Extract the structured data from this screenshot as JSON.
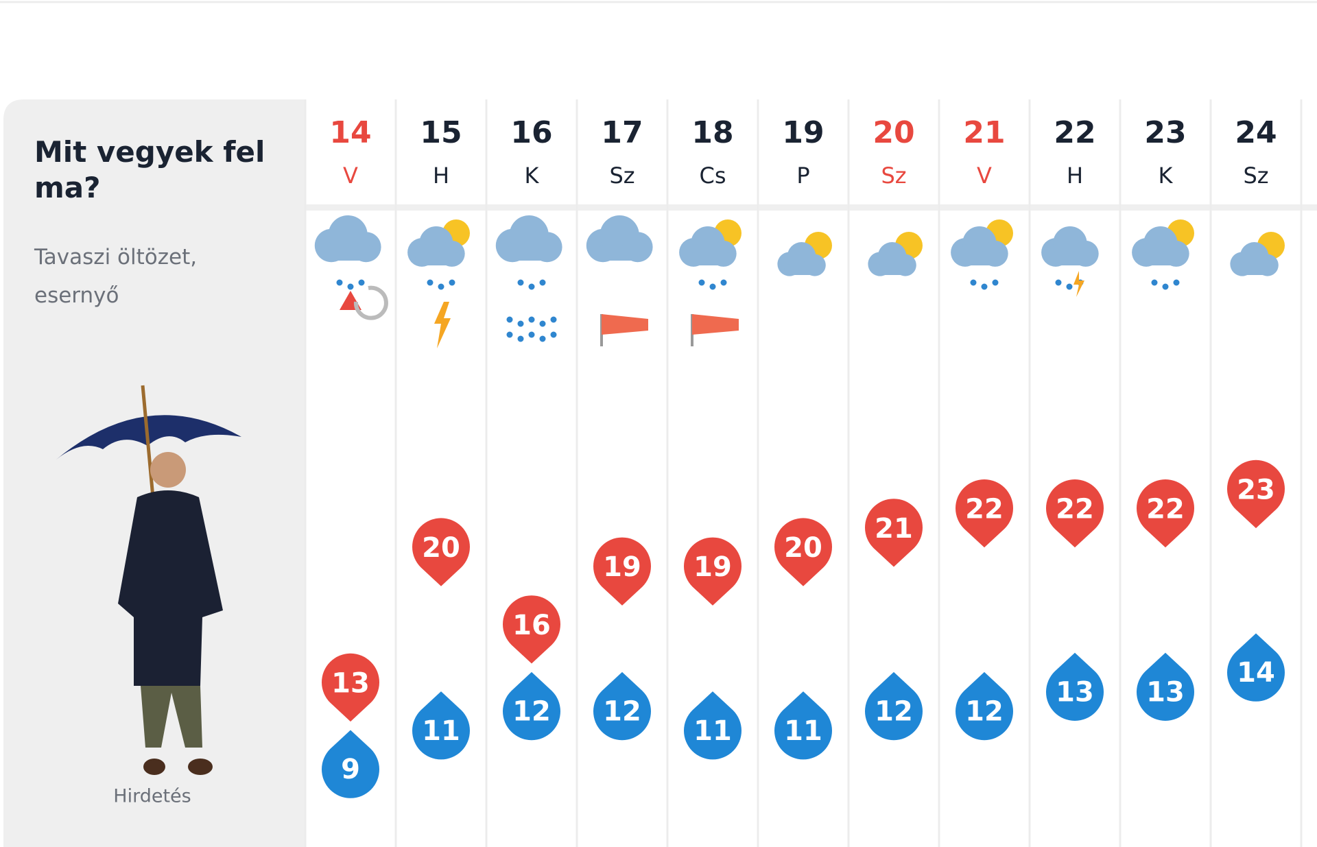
{
  "panel": {
    "title": "Mit vegyek fel ma?",
    "subtitle": "Tavaszi öltözet, esernyő",
    "ad_label": "Hirdetés"
  },
  "days": [
    {
      "date": 14,
      "weekday": "V",
      "weekend": true,
      "max": 13,
      "min": 9
    },
    {
      "date": 15,
      "weekday": "H",
      "weekend": false,
      "max": 20,
      "min": 11
    },
    {
      "date": 16,
      "weekday": "K",
      "weekend": false,
      "max": 16,
      "min": 12
    },
    {
      "date": 17,
      "weekday": "Sz",
      "weekend": false,
      "max": 19,
      "min": 12
    },
    {
      "date": 18,
      "weekday": "Cs",
      "weekend": false,
      "max": 19,
      "min": 11
    },
    {
      "date": 19,
      "weekday": "P",
      "weekend": false,
      "max": 20,
      "min": 11
    },
    {
      "date": 20,
      "weekday": "Sz",
      "weekend": true,
      "max": 21,
      "min": 12
    },
    {
      "date": 21,
      "weekday": "V",
      "weekend": true,
      "max": 22,
      "min": 12
    },
    {
      "date": 22,
      "weekday": "H",
      "weekend": false,
      "max": 22,
      "min": 13
    },
    {
      "date": 23,
      "weekday": "K",
      "weekend": false,
      "max": 22,
      "min": 13
    },
    {
      "date": 24,
      "weekday": "Sz",
      "weekend": false,
      "max": 23,
      "min": 14
    }
  ]
}
